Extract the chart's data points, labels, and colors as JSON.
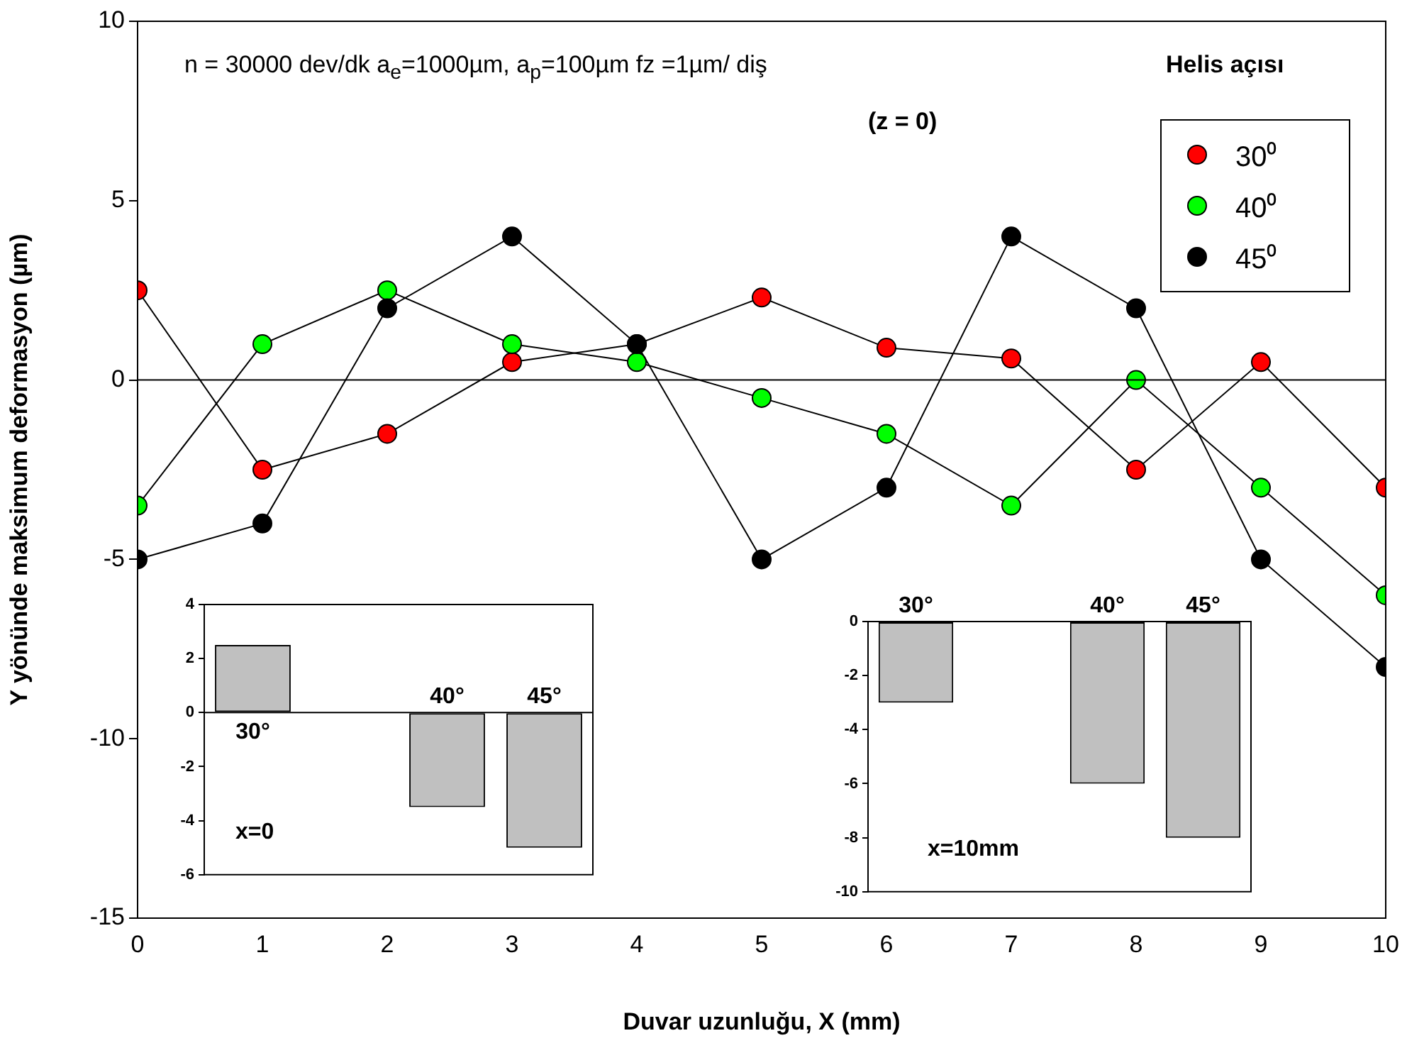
{
  "chart_data": [
    {
      "type": "line",
      "xlabel": "Duvar uzunluğu, X (mm)",
      "ylabel": "Y yönünde maksimum deformasyon (µm)",
      "legend_title": "Helis açısı",
      "legend": "top right",
      "marker": "circle",
      "grid": false,
      "annotations": [
        "n = 30000 dev/dk  a$_{e}$=1000µm, a$_{p}$=100µm  fz =1µm/ diş",
        "(z = 0)"
      ],
      "x": [
        0,
        1,
        2,
        3,
        4,
        5,
        6,
        7,
        8,
        9,
        10
      ],
      "series": [
        {
          "name": "30⁰",
          "color": "#ff0000",
          "values": [
            2.5,
            -2.5,
            -1.5,
            0.5,
            1,
            2.3,
            0.9,
            0.6,
            -2.5,
            0.5,
            -3
          ]
        },
        {
          "name": "40⁰",
          "color": "#00ff00",
          "values": [
            -3.5,
            1,
            2.5,
            1,
            0.5,
            -0.5,
            -1.5,
            -3.5,
            0,
            -3,
            -6
          ]
        },
        {
          "name": "45⁰",
          "color": "#000000",
          "values": [
            -5,
            -4,
            2,
            4,
            1,
            -5,
            -3,
            4,
            2,
            -5,
            -8
          ]
        }
      ],
      "xlim": [
        0,
        10
      ],
      "xticks": [
        0,
        1,
        2,
        3,
        4,
        5,
        6,
        7,
        8,
        9,
        10
      ],
      "ylim": [
        -15,
        10
      ],
      "yticks": [
        -15,
        -10,
        -5,
        0,
        5,
        10
      ],
      "ref_lines": [
        {
          "axis": "y",
          "value": 0
        }
      ]
    },
    {
      "type": "bar",
      "categories": [
        "30°",
        null,
        "40°",
        "45°"
      ],
      "values": [
        2.5,
        null,
        -3.5,
        -5
      ],
      "color": "#c0c0c0",
      "ylim": [
        -6,
        4
      ],
      "yticks": [
        -6,
        -4,
        -2,
        0,
        2,
        4
      ],
      "tick_labels": "y",
      "annotations": [
        "x=0"
      ],
      "ref_lines": [
        {
          "axis": "y",
          "value": 0
        }
      ]
    },
    {
      "type": "bar",
      "categories": [
        "30°",
        null,
        "40°",
        "45°"
      ],
      "values": [
        -3,
        null,
        -6,
        -8
      ],
      "color": "#c0c0c0",
      "ylim": [
        -10,
        0
      ],
      "yticks": [
        -10,
        -8,
        -6,
        -4,
        -2,
        0
      ],
      "tick_labels": "y",
      "annotations": [
        "x=10mm"
      ]
    }
  ]
}
